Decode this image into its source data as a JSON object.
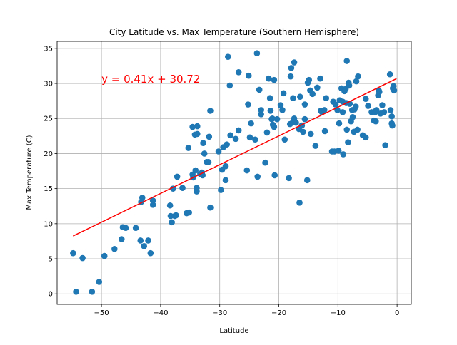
{
  "chart_data": {
    "type": "scatter",
    "title": "City Latitude vs. Max Temperature (Southern Hemisphere)",
    "xlabel": "Latitude",
    "ylabel": "Max Temperature (C)",
    "xlim": [
      -57.5,
      2.4
    ],
    "ylim": [
      -1.5,
      36.0
    ],
    "xticks": [
      -50,
      -40,
      -30,
      -20,
      -10,
      0
    ],
    "yticks": [
      0,
      5,
      10,
      15,
      20,
      25,
      30,
      35
    ],
    "grid": true,
    "marker_color": "#1f77b4",
    "regression": {
      "equation": "y = 0.41x + 30.72",
      "slope": 0.41,
      "intercept": 30.72,
      "x_range": [
        -54.8,
        -0.1
      ],
      "color": "#ff0000",
      "label_anchor": [
        -50.0,
        30.1
      ]
    },
    "points": [
      [
        -54.8,
        5.8
      ],
      [
        -54.3,
        0.3
      ],
      [
        -53.2,
        5.1
      ],
      [
        -51.6,
        0.3
      ],
      [
        -50.4,
        1.7
      ],
      [
        -49.5,
        5.4
      ],
      [
        -47.8,
        6.4
      ],
      [
        -46.6,
        7.8
      ],
      [
        -46.4,
        9.5
      ],
      [
        -45.9,
        9.4
      ],
      [
        -44.2,
        9.4
      ],
      [
        -43.4,
        7.6
      ],
      [
        -43.3,
        13.1
      ],
      [
        -43.1,
        13.7
      ],
      [
        -42.8,
        6.8
      ],
      [
        -42.1,
        7.6
      ],
      [
        -41.7,
        5.8
      ],
      [
        -41.3,
        12.7
      ],
      [
        -41.3,
        13.3
      ],
      [
        -38.4,
        12.6
      ],
      [
        -38.3,
        11.1
      ],
      [
        -38.1,
        10.2
      ],
      [
        -37.6,
        11.1
      ],
      [
        -37.4,
        11.2
      ],
      [
        -37.2,
        16.7
      ],
      [
        -37.9,
        15.0
      ],
      [
        -36.3,
        15.1
      ],
      [
        -35.6,
        11.5
      ],
      [
        -35.2,
        11.6
      ],
      [
        -35.3,
        20.8
      ],
      [
        -34.6,
        23.8
      ],
      [
        -34.6,
        17.0
      ],
      [
        -34.5,
        16.6
      ],
      [
        -34.2,
        22.7
      ],
      [
        -34.1,
        17.6
      ],
      [
        -33.9,
        15.1
      ],
      [
        -33.9,
        14.6
      ],
      [
        -33.8,
        22.8
      ],
      [
        -33.8,
        23.9
      ],
      [
        -33.3,
        17.1
      ],
      [
        -33.0,
        17.3
      ],
      [
        -32.9,
        16.9
      ],
      [
        -32.8,
        21.5
      ],
      [
        -32.6,
        20.0
      ],
      [
        -32.2,
        18.8
      ],
      [
        -31.9,
        18.8
      ],
      [
        -31.8,
        22.4
      ],
      [
        -31.6,
        26.1
      ],
      [
        -31.6,
        12.3
      ],
      [
        -30.2,
        20.3
      ],
      [
        -29.8,
        14.8
      ],
      [
        -29.6,
        17.7
      ],
      [
        -29.4,
        20.9
      ],
      [
        -29.0,
        16.2
      ],
      [
        -29.0,
        18.2
      ],
      [
        -28.8,
        21.3
      ],
      [
        -28.6,
        33.8
      ],
      [
        -28.3,
        29.7
      ],
      [
        -28.2,
        22.6
      ],
      [
        -27.3,
        22.1
      ],
      [
        -26.8,
        23.3
      ],
      [
        -26.8,
        31.6
      ],
      [
        -25.4,
        17.6
      ],
      [
        -25.2,
        27.0
      ],
      [
        -25.1,
        31.1
      ],
      [
        -24.9,
        22.3
      ],
      [
        -24.7,
        24.3
      ],
      [
        -24.0,
        22.0
      ],
      [
        -23.7,
        34.3
      ],
      [
        -23.6,
        16.7
      ],
      [
        -23.3,
        29.1
      ],
      [
        -23.0,
        25.6
      ],
      [
        -23.0,
        26.2
      ],
      [
        -22.3,
        18.7
      ],
      [
        -22.0,
        23.0
      ],
      [
        -21.7,
        30.7
      ],
      [
        -21.5,
        27.9
      ],
      [
        -21.4,
        26.1
      ],
      [
        -21.2,
        24.9
      ],
      [
        -21.1,
        25.0
      ],
      [
        -21.0,
        24.1
      ],
      [
        -20.8,
        23.8
      ],
      [
        -20.7,
        16.9
      ],
      [
        -20.8,
        30.5
      ],
      [
        -20.3,
        24.9
      ],
      [
        -19.7,
        26.9
      ],
      [
        -19.4,
        26.2
      ],
      [
        -19.2,
        28.6
      ],
      [
        -19.0,
        22.0
      ],
      [
        -18.3,
        16.5
      ],
      [
        -18.1,
        24.2
      ],
      [
        -18.0,
        31.0
      ],
      [
        -17.9,
        32.2
      ],
      [
        -17.6,
        24.5
      ],
      [
        -17.6,
        27.9
      ],
      [
        -17.4,
        25.0
      ],
      [
        -17.4,
        33.0
      ],
      [
        -17.1,
        24.4
      ],
      [
        -16.6,
        23.5
      ],
      [
        -16.5,
        13.0
      ],
      [
        -16.4,
        28.1
      ],
      [
        -16.1,
        24.0
      ],
      [
        -15.9,
        23.1
      ],
      [
        -15.6,
        24.9
      ],
      [
        -15.6,
        27.0
      ],
      [
        -15.2,
        16.2
      ],
      [
        -15.1,
        30.1
      ],
      [
        -14.9,
        30.5
      ],
      [
        -14.7,
        29.0
      ],
      [
        -14.6,
        22.8
      ],
      [
        -14.3,
        28.5
      ],
      [
        -13.8,
        21.1
      ],
      [
        -13.5,
        29.4
      ],
      [
        -13.0,
        30.7
      ],
      [
        -12.9,
        26.1
      ],
      [
        -12.7,
        25.9
      ],
      [
        -12.3,
        26.2
      ],
      [
        -12.2,
        23.2
      ],
      [
        -12.0,
        27.9
      ],
      [
        -11.0,
        20.3
      ],
      [
        -10.8,
        27.4
      ],
      [
        -10.6,
        20.3
      ],
      [
        -10.4,
        27.0
      ],
      [
        -10.1,
        26.2
      ],
      [
        -9.8,
        24.3
      ],
      [
        -9.9,
        20.4
      ],
      [
        -9.7,
        27.6
      ],
      [
        -9.4,
        29.3
      ],
      [
        -9.2,
        25.9
      ],
      [
        -9.2,
        27.4
      ],
      [
        -9.1,
        19.9
      ],
      [
        -8.9,
        28.9
      ],
      [
        -8.7,
        29.2
      ],
      [
        -8.6,
        27.2
      ],
      [
        -8.5,
        33.2
      ],
      [
        -8.5,
        23.4
      ],
      [
        -8.3,
        21.6
      ],
      [
        -8.2,
        30.1
      ],
      [
        -8.1,
        29.7
      ],
      [
        -8.0,
        27.1
      ],
      [
        -7.8,
        24.6
      ],
      [
        -7.6,
        26.2
      ],
      [
        -7.5,
        25.2
      ],
      [
        -7.3,
        23.1
      ],
      [
        -7.2,
        26.3
      ],
      [
        -7.0,
        26.7
      ],
      [
        -6.9,
        30.3
      ],
      [
        -6.7,
        23.4
      ],
      [
        -6.6,
        31.0
      ],
      [
        -5.8,
        22.6
      ],
      [
        -5.3,
        22.3
      ],
      [
        -5.3,
        27.8
      ],
      [
        -4.9,
        26.8
      ],
      [
        -4.3,
        25.9
      ],
      [
        -3.9,
        24.7
      ],
      [
        -3.7,
        25.9
      ],
      [
        -3.6,
        24.6
      ],
      [
        -3.5,
        26.2
      ],
      [
        -3.2,
        28.3
      ],
      [
        -3.1,
        29.0
      ],
      [
        -3.0,
        28.8
      ],
      [
        -2.8,
        25.7
      ],
      [
        -2.5,
        26.9
      ],
      [
        -2.2,
        25.9
      ],
      [
        -2.0,
        21.2
      ],
      [
        -1.2,
        31.3
      ],
      [
        -1.1,
        26.2
      ],
      [
        -0.9,
        25.3
      ],
      [
        -0.9,
        24.3
      ],
      [
        -0.8,
        24.0
      ],
      [
        -0.7,
        29.3
      ],
      [
        -0.6,
        29.6
      ],
      [
        -0.5,
        29.0
      ]
    ]
  }
}
